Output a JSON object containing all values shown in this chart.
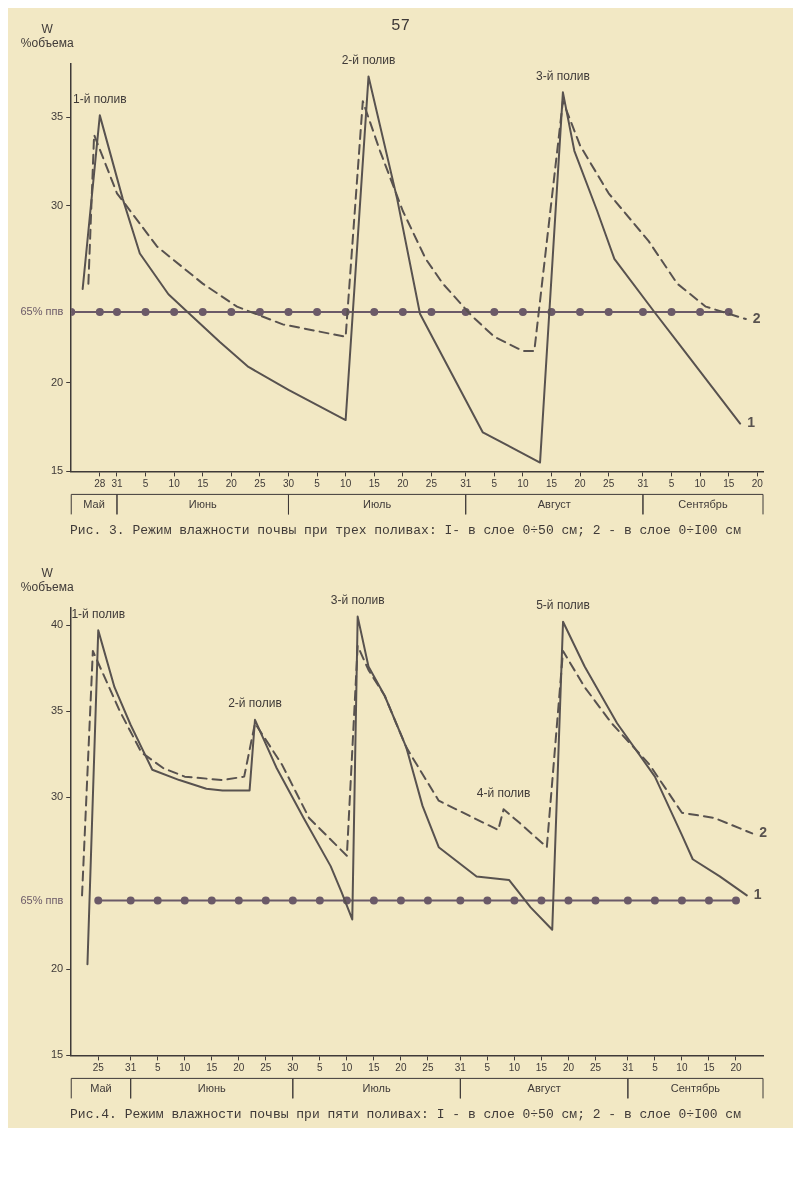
{
  "chart_data": [
    {
      "type": "line",
      "title": "Рис. 3. Режим влажности почвы при трех поливах: I- в слое 0÷50 см; 2 - в слое 0÷I00 см",
      "ylabel": "W\n%объема",
      "annotations": [
        "57",
        {
          "text": "1-й полив",
          "x": "--05-28",
          "y": 35.1
        },
        {
          "text": "2-й полив",
          "x": "--07-14",
          "y": 37.3
        },
        {
          "text": "3-й полив",
          "x": "--08-17",
          "y": 36.4
        },
        "Май",
        "Июнь",
        "Июль",
        "Август",
        "Сентябрь"
      ],
      "xlim": [
        "--05-23",
        "--09-21"
      ],
      "xticks": [
        {
          "value": "--05-28",
          "label": "28"
        },
        {
          "value": "--05-31",
          "label": "31"
        },
        {
          "value": "--06-05",
          "label": "5"
        },
        {
          "value": "--06-10",
          "label": "10"
        },
        {
          "value": "--06-15",
          "label": "15"
        },
        {
          "value": "--06-20",
          "label": "20"
        },
        {
          "value": "--06-25",
          "label": "25"
        },
        {
          "value": "--06-30",
          "label": "30"
        },
        {
          "value": "--07-05",
          "label": "5"
        },
        {
          "value": "--07-10",
          "label": "10"
        },
        {
          "value": "--07-15",
          "label": "15"
        },
        {
          "value": "--07-20",
          "label": "20"
        },
        {
          "value": "--07-25",
          "label": "25"
        },
        {
          "value": "--07-31",
          "label": "31"
        },
        {
          "value": "--08-05",
          "label": "5"
        },
        {
          "value": "--08-10",
          "label": "10"
        },
        {
          "value": "--08-15",
          "label": "15"
        },
        {
          "value": "--08-20",
          "label": "20"
        },
        {
          "value": "--08-25",
          "label": "25"
        },
        {
          "value": "--08-31",
          "label": "31"
        },
        {
          "value": "--09-05",
          "label": "5"
        },
        {
          "value": "--09-10",
          "label": "10"
        },
        {
          "value": "--09-15",
          "label": "15"
        },
        {
          "value": "--09-20",
          "label": "20"
        }
      ],
      "ylim": [
        15,
        38
      ],
      "yticks": [
        15,
        20,
        30,
        35
      ],
      "series": [
        {
          "name": "1",
          "color": "#58524f",
          "line_style": "solid",
          "marker": "none",
          "x": [
            "--05-25",
            "--05-28",
            "--06-01",
            "--06-04",
            "--06-09",
            "--06-13",
            "--06-18",
            "--06-23",
            "--06-30",
            "--07-10",
            "--07-14",
            "--07-19",
            "--07-23",
            "--08-03",
            "--08-13",
            "--08-17",
            "--08-19",
            "--08-23",
            "--08-26",
            "--09-02",
            "--09-07",
            "--09-12",
            "--09-17"
          ],
          "values": [
            25.3,
            35.1,
            30.4,
            27.3,
            25,
            23.8,
            22.3,
            20.9,
            19.6,
            17.9,
            37.3,
            30.4,
            23.9,
            17.2,
            15.5,
            36.4,
            33.1,
            29.7,
            27,
            24,
            21.9,
            19.8,
            17.7
          ]
        },
        {
          "name": "2",
          "color": "#58524f",
          "line_style": "dashed",
          "marker": "none",
          "x": [
            "--05-26",
            "--05-27",
            "--05-31",
            "--06-07",
            "--06-15",
            "--06-21",
            "--06-29",
            "--07-10",
            "--07-13",
            "--07-16",
            "--07-20",
            "--07-24",
            "--07-27",
            "--08-01",
            "--08-05",
            "--08-10",
            "--08-12",
            "--08-17",
            "--08-20",
            "--08-25",
            "--09-01",
            "--09-06",
            "--09-11",
            "--09-18"
          ],
          "values": [
            25.6,
            34,
            30.7,
            27.7,
            25.6,
            24.3,
            23.3,
            22.6,
            35.9,
            33.1,
            29.7,
            27,
            25.6,
            23.8,
            22.6,
            21.8,
            21.8,
            35.9,
            33.4,
            30.7,
            28,
            25.6,
            24.3,
            23.6
          ]
        },
        {
          "name": "65% ппв",
          "color": "#6b5a68",
          "line_style": "solid",
          "marker": "circle",
          "x": [
            "--05-23",
            "--05-28",
            "--05-31",
            "--06-05",
            "--06-10",
            "--06-15",
            "--06-20",
            "--06-25",
            "--06-30",
            "--07-05",
            "--07-10",
            "--07-15",
            "--07-20",
            "--07-25",
            "--07-31",
            "--08-05",
            "--08-10",
            "--08-15",
            "--08-20",
            "--08-25",
            "--08-31",
            "--09-05",
            "--09-10",
            "--09-15"
          ],
          "values": [
            24,
            24,
            24,
            24,
            24,
            24,
            24,
            24,
            24,
            24,
            24,
            24,
            24,
            24,
            24,
            24,
            24,
            24,
            24,
            24,
            24,
            24,
            24,
            24
          ]
        }
      ]
    },
    {
      "type": "line",
      "title": "Рис.4. Режим влажности почвы при пяти поливах: I - в слое 0÷50 см; 2 - в слое 0÷I00 см",
      "ylabel": "W\n%объема",
      "annotations": [
        {
          "text": "1-й полив",
          "x": "--05-25",
          "y": 39.7
        },
        {
          "text": "2-й полив",
          "x": "--06-23",
          "y": 34.5
        },
        {
          "text": "3-й полив",
          "x": "--07-12",
          "y": 40.5
        },
        {
          "text": "4-й полив",
          "x": "--08-08",
          "y": 29.3
        },
        {
          "text": "5-й полив",
          "x": "--08-19",
          "y": 40.2
        },
        "Май",
        "Июнь",
        "Июль",
        "Август",
        "Сентябрь"
      ],
      "xlim": [
        "--05-20",
        "--09-25"
      ],
      "xticks": [
        {
          "value": "--05-25",
          "label": "25"
        },
        {
          "value": "--05-31",
          "label": "31"
        },
        {
          "value": "--06-05",
          "label": "5"
        },
        {
          "value": "--06-10",
          "label": "10"
        },
        {
          "value": "--06-15",
          "label": "15"
        },
        {
          "value": "--06-20",
          "label": "20"
        },
        {
          "value": "--06-25",
          "label": "25"
        },
        {
          "value": "--06-30",
          "label": "30"
        },
        {
          "value": "--07-05",
          "label": "5"
        },
        {
          "value": "--07-10",
          "label": "10"
        },
        {
          "value": "--07-15",
          "label": "15"
        },
        {
          "value": "--07-20",
          "label": "20"
        },
        {
          "value": "--07-25",
          "label": "25"
        },
        {
          "value": "--07-31",
          "label": "31"
        },
        {
          "value": "--08-05",
          "label": "5"
        },
        {
          "value": "--08-10",
          "label": "10"
        },
        {
          "value": "--08-15",
          "label": "15"
        },
        {
          "value": "--08-20",
          "label": "20"
        },
        {
          "value": "--08-25",
          "label": "25"
        },
        {
          "value": "--08-31",
          "label": "31"
        },
        {
          "value": "--09-05",
          "label": "5"
        },
        {
          "value": "--09-10",
          "label": "10"
        },
        {
          "value": "--09-15",
          "label": "15"
        },
        {
          "value": "--09-20",
          "label": "20"
        }
      ],
      "ylim": [
        15,
        41
      ],
      "yticks": [
        15,
        20,
        30,
        35,
        40
      ],
      "series": [
        {
          "name": "1",
          "color": "#58524f",
          "line_style": "solid",
          "marker": "none",
          "x": [
            "--05-23",
            "--05-25",
            "--05-28",
            "--05-31",
            "--06-04",
            "--06-09",
            "--06-14",
            "--06-17",
            "--06-22",
            "--06-23",
            "--06-27",
            "--07-02",
            "--07-07",
            "--07-09",
            "--07-11",
            "--07-12",
            "--07-14",
            "--07-17",
            "--07-21",
            "--07-24",
            "--07-27",
            "--08-03",
            "--08-09",
            "--08-13",
            "--08-17",
            "--08-19",
            "--08-23",
            "--08-29",
            "--09-05",
            "--09-10",
            "--09-12",
            "--09-17",
            "--09-22"
          ],
          "values": [
            20.3,
            39.7,
            36.4,
            34.2,
            31.6,
            31,
            30.5,
            30.4,
            30.4,
            34.5,
            31.7,
            28.8,
            26,
            24.5,
            22.9,
            40.5,
            37.6,
            35.9,
            32.9,
            29.5,
            27.1,
            25.4,
            25.2,
            23.6,
            22.3,
            40.2,
            37.6,
            34.3,
            31.2,
            27.8,
            26.4,
            25.4,
            24.3
          ]
        },
        {
          "name": "2",
          "color": "#58524f",
          "line_style": "dashed",
          "marker": "none",
          "x": [
            "--05-22",
            "--05-24",
            "--05-29",
            "--06-02",
            "--06-06",
            "--06-10",
            "--06-17",
            "--06-21",
            "--06-23",
            "--06-28",
            "--07-03",
            "--07-10",
            "--07-12",
            "--07-14",
            "--07-17",
            "--07-21",
            "--07-27",
            "--08-07",
            "--08-08",
            "--08-11",
            "--08-16",
            "--08-19",
            "--08-23",
            "--08-28",
            "--09-04",
            "--09-10",
            "--09-16",
            "--09-23"
          ],
          "values": [
            24.3,
            38.5,
            35,
            32.6,
            31.7,
            31.2,
            31,
            31.2,
            34.3,
            31.9,
            28.8,
            26.6,
            38.8,
            37.4,
            35.9,
            32.9,
            29.8,
            28.1,
            29.3,
            28.5,
            27.1,
            38.5,
            36.4,
            34.3,
            31.9,
            29.1,
            28.8,
            27.9
          ]
        },
        {
          "name": "65% ппв",
          "color": "#6b5a68",
          "line_style": "solid",
          "marker": "circle",
          "x": [
            "--05-25",
            "--05-31",
            "--06-05",
            "--06-10",
            "--06-15",
            "--06-20",
            "--06-25",
            "--06-30",
            "--07-05",
            "--07-10",
            "--07-15",
            "--07-20",
            "--07-25",
            "--07-31",
            "--08-05",
            "--08-10",
            "--08-15",
            "--08-20",
            "--08-25",
            "--08-31",
            "--09-05",
            "--09-10",
            "--09-15",
            "--09-20"
          ],
          "values": [
            24,
            24,
            24,
            24,
            24,
            24,
            24,
            24,
            24,
            24,
            24,
            24,
            24,
            24,
            24,
            24,
            24,
            24,
            24,
            24,
            24,
            24,
            24,
            24
          ]
        }
      ]
    }
  ]
}
